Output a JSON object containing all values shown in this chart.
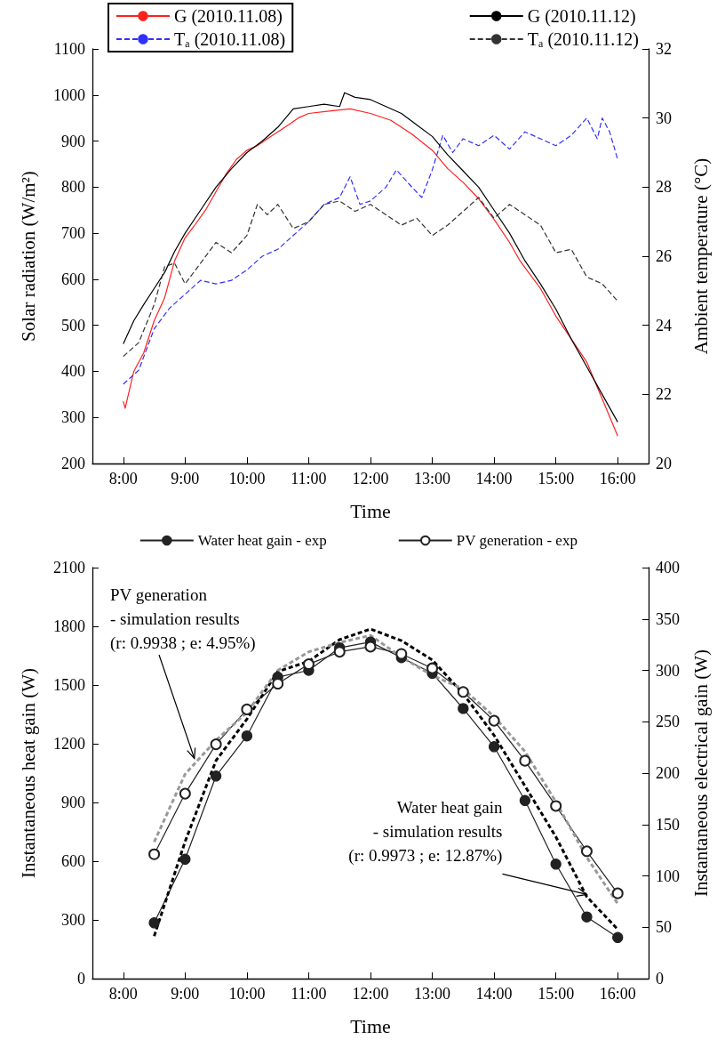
{
  "chart_data": [
    {
      "type": "line",
      "xlabel": "Time",
      "ylabel": "Solar radiation (W/m²)",
      "y2label": "Ambient temperature (°C)",
      "xlim": [
        7.5,
        16.5
      ],
      "xticks": [
        {
          "value": 8,
          "label": "8:00"
        },
        {
          "value": 9,
          "label": "9:00"
        },
        {
          "value": 10,
          "label": "10:00"
        },
        {
          "value": 11,
          "label": "11:00"
        },
        {
          "value": 12,
          "label": "12:00"
        },
        {
          "value": 13,
          "label": "13:00"
        },
        {
          "value": 14,
          "label": "14:00"
        },
        {
          "value": 15,
          "label": "15:00"
        },
        {
          "value": 16,
          "label": "16:00"
        }
      ],
      "ylim": [
        200,
        1100
      ],
      "yticks": [
        200,
        300,
        400,
        500,
        600,
        700,
        800,
        900,
        1000,
        1100
      ],
      "y2lim": [
        20,
        32
      ],
      "y2ticks": [
        20,
        22,
        24,
        26,
        28,
        30,
        32
      ],
      "legend": "top",
      "series": [
        {
          "name": "G (2010.11.08)",
          "color": "#ff2020",
          "line_style": "solid",
          "x": [
            8,
            8.03,
            8.17,
            8.33,
            8.5,
            8.67,
            8.83,
            9,
            9.17,
            9.33,
            9.5,
            9.67,
            9.83,
            10,
            10.17,
            10.33,
            10.5,
            10.67,
            10.83,
            11,
            11.33,
            11.67,
            12,
            12.33,
            12.67,
            13,
            13.25,
            13.5,
            13.75,
            14,
            14.25,
            14.42,
            14.5,
            14.75,
            15,
            15.25,
            15.5,
            15.75,
            16
          ],
          "values": [
            335,
            320,
            400,
            440,
            510,
            560,
            640,
            690,
            720,
            750,
            790,
            830,
            860,
            880,
            890,
            905,
            920,
            935,
            950,
            960,
            965,
            970,
            960,
            945,
            915,
            880,
            840,
            810,
            775,
            730,
            680,
            640,
            625,
            580,
            520,
            470,
            420,
            340,
            260
          ]
        },
        {
          "name": "Tₐ (2010.11.08)",
          "color": "#3030ff",
          "line_style": "dashed",
          "axis": "y2",
          "x": [
            8,
            8.25,
            8.5,
            8.75,
            9,
            9.25,
            9.5,
            9.75,
            10,
            10.25,
            10.5,
            10.75,
            11,
            11.25,
            11.5,
            11.67,
            11.83,
            12,
            12.25,
            12.42,
            12.67,
            12.83,
            13,
            13.17,
            13.33,
            13.5,
            13.75,
            14,
            14.25,
            14.5,
            14.75,
            15,
            15.25,
            15.5,
            15.67,
            15.75,
            15.87,
            16
          ],
          "values": [
            22.3,
            22.7,
            23.9,
            24.5,
            24.9,
            25.3,
            25.2,
            25.3,
            25.6,
            26.0,
            26.2,
            26.6,
            27.0,
            27.5,
            27.7,
            28.3,
            27.5,
            27.6,
            28.0,
            28.5,
            28.0,
            27.7,
            28.5,
            29.5,
            29.0,
            29.4,
            29.2,
            29.5,
            29.1,
            29.6,
            29.4,
            29.2,
            29.5,
            30.0,
            29.4,
            30.0,
            29.6,
            28.8
          ]
        },
        {
          "name": "G (2010.11.12)",
          "color": "#000000",
          "line_style": "solid",
          "x": [
            8,
            8.17,
            8.33,
            8.5,
            8.67,
            8.83,
            9,
            9.25,
            9.5,
            9.75,
            10,
            10.25,
            10.5,
            10.75,
            11,
            11.25,
            11.5,
            11.58,
            11.75,
            12,
            12.25,
            12.5,
            12.75,
            13,
            13.25,
            13.5,
            13.75,
            14,
            14.25,
            14.5,
            14.75,
            15,
            15.25,
            15.5,
            15.75,
            16
          ],
          "values": [
            460,
            510,
            545,
            580,
            615,
            660,
            700,
            750,
            800,
            840,
            875,
            900,
            930,
            970,
            975,
            980,
            975,
            1005,
            995,
            990,
            975,
            960,
            935,
            910,
            870,
            835,
            800,
            750,
            700,
            640,
            590,
            535,
            470,
            410,
            350,
            290
          ]
        },
        {
          "name": "Tₐ (2010.11.12)",
          "color": "#333333",
          "line_style": "dashed",
          "axis": "y2",
          "x": [
            8,
            8.25,
            8.5,
            8.67,
            8.83,
            9,
            9.25,
            9.5,
            9.75,
            10,
            10.17,
            10.33,
            10.5,
            10.75,
            11,
            11.25,
            11.5,
            11.75,
            12,
            12.25,
            12.5,
            12.75,
            13,
            13.25,
            13.5,
            13.75,
            14,
            14.25,
            14.5,
            14.75,
            15,
            15.25,
            15.5,
            15.75,
            16
          ],
          "values": [
            23.1,
            23.5,
            24.6,
            25.7,
            25.8,
            25.2,
            25.8,
            26.4,
            26.1,
            26.6,
            27.5,
            27.2,
            27.5,
            26.8,
            27.0,
            27.5,
            27.6,
            27.3,
            27.5,
            27.2,
            26.9,
            27.1,
            26.6,
            26.9,
            27.3,
            27.7,
            27.1,
            27.5,
            27.2,
            26.9,
            26.1,
            26.2,
            25.4,
            25.2,
            24.7
          ]
        }
      ]
    },
    {
      "type": "line",
      "xlabel": "Time",
      "ylabel": "Instantaneous heat gain (W)",
      "y2label": "Instantaneous electrical gain (W)",
      "x": [
        8.5,
        9,
        9.5,
        10,
        10.5,
        11,
        11.5,
        12,
        12.5,
        13,
        13.5,
        14,
        14.5,
        15,
        15.5,
        16
      ],
      "xlim": [
        7.5,
        16.5
      ],
      "xticks": [
        {
          "value": 8,
          "label": "8:00"
        },
        {
          "value": 9,
          "label": "9:00"
        },
        {
          "value": 10,
          "label": "10:00"
        },
        {
          "value": 11,
          "label": "11:00"
        },
        {
          "value": 12,
          "label": "12:00"
        },
        {
          "value": 13,
          "label": "13:00"
        },
        {
          "value": 14,
          "label": "14:00"
        },
        {
          "value": 15,
          "label": "15:00"
        },
        {
          "value": 16,
          "label": "16:00"
        }
      ],
      "ylim": [
        0,
        2100
      ],
      "yticks": [
        0,
        300,
        600,
        900,
        1200,
        1500,
        1800,
        2100
      ],
      "y2lim": [
        0,
        400
      ],
      "y2ticks": [
        0,
        50,
        100,
        150,
        200,
        250,
        300,
        350,
        400
      ],
      "legend": "top",
      "annotations": [
        {
          "text": "PV generation\n- simulation results\n(r: 0.9938 ; e: 4.95%)",
          "x": 9.15,
          "y": 1125
        },
        {
          "text": "Water heat gain\n- simulation results\n(r: 0.9973 ; e: 12.87%)",
          "x": 15.5,
          "y": 430
        }
      ],
      "series": [
        {
          "name": "Water heat gain - exp",
          "color": "#222222",
          "marker": "circle",
          "line_style": "solid",
          "values": [
            285,
            610,
            1035,
            1240,
            1540,
            1575,
            1690,
            1720,
            1640,
            1560,
            1380,
            1185,
            910,
            585,
            315,
            210
          ]
        },
        {
          "name": "PV generation - exp",
          "color": "#222222",
          "marker": "circle",
          "line_style": "solid",
          "axis": "y2",
          "values": [
            121,
            180,
            228,
            262,
            287,
            306,
            318,
            323,
            316,
            302,
            279,
            251,
            212,
            168,
            124,
            83
          ]
        },
        {
          "color": "#000000",
          "marker": "none",
          "line_style": "dashed",
          "values": [
            217,
            700,
            1114,
            1326,
            1569,
            1621,
            1732,
            1786,
            1727,
            1628,
            1456,
            1243,
            984,
            724,
            418,
            252
          ]
        },
        {
          "color": "#999999",
          "marker": "none",
          "line_style": "dashed",
          "axis": "y2",
          "values": [
            133,
            199,
            232,
            259,
            300,
            318,
            327,
            334,
            313,
            295,
            282,
            255,
            221,
            172,
            118,
            73
          ]
        }
      ]
    }
  ]
}
